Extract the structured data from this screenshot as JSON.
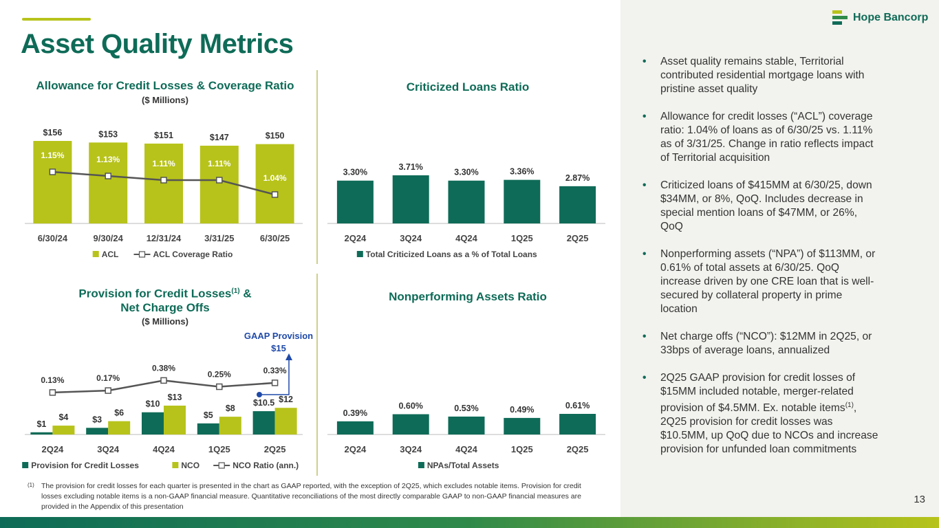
{
  "page": {
    "title": "Asset Quality Metrics",
    "page_number": "13",
    "logo_text": "Hope Bancorp"
  },
  "colors": {
    "green": "#0e6b57",
    "lime": "#b7c31a",
    "dark_gray": "#555555"
  },
  "bullets": [
    "Asset quality remains stable, Territorial contributed residential mortgage loans with pristine asset quality",
    "Allowance for credit losses (“ACL”) coverage ratio: 1.04% of loans as of 6/30/25 vs. 1.11% as of 3/31/25. Change in ratio reflects impact of Territorial acquisition",
    "Criticized loans of $415MM at 6/30/25, down $34MM, or 8%, QoQ. Includes decrease in special mention loans of $47MM, or 26%, QoQ",
    "Nonperforming assets (“NPA”) of $113MM, or 0.61% of total assets at 6/30/25. QoQ increase driven by one CRE loan that is well-secured by collateral property in prime location",
    "Net charge offs (“NCO”): $12MM in 2Q25, or 33bps of average loans, annualized",
    "2Q25 GAAP provision for credit losses of $15MM included notable, merger-related provision of $4.5MM. Ex. notable items(1), 2Q25 provision for credit losses was $10.5MM, up QoQ due to NCOs and increase provision for unfunded loan commitments"
  ],
  "footnote": {
    "marker": "(1)",
    "text": "The provision for credit losses for each quarter is presented in the chart as GAAP reported, with the exception of 2Q25, which excludes notable items. Provision for credit losses excluding notable items is a non-GAAP financial measure. Quantitative reconciliations of the most directly comparable GAAP to non-GAAP financial measures are provided in the Appendix of this presentation"
  },
  "gaap_annotation": {
    "line1": "GAAP Provision",
    "line2": "$15"
  },
  "chart_data": [
    {
      "id": "acl",
      "type": "bar",
      "title": "Allowance for Credit Losses & Coverage Ratio",
      "subtitle": "($ Millions)",
      "categories": [
        "6/30/24",
        "9/30/24",
        "12/31/24",
        "3/31/25",
        "6/30/25"
      ],
      "series": [
        {
          "name": "ACL",
          "kind": "bar",
          "color": "#b7c31a",
          "values": [
            156,
            153,
            151,
            147,
            150
          ],
          "labels": [
            "$156",
            "$153",
            "$151",
            "$147",
            "$150"
          ]
        },
        {
          "name": "ACL Coverage Ratio",
          "kind": "line",
          "color": "#555555",
          "values": [
            1.15,
            1.13,
            1.11,
            1.11,
            1.04
          ],
          "labels": [
            "1.15%",
            "1.13%",
            "1.11%",
            "1.11%",
            "1.04%"
          ]
        }
      ],
      "legend_position": "bottom"
    },
    {
      "id": "criticized",
      "type": "bar",
      "title": "Criticized Loans Ratio",
      "categories": [
        "2Q24",
        "3Q24",
        "4Q24",
        "1Q25",
        "2Q25"
      ],
      "series": [
        {
          "name": "Total Criticized Loans as a % of Total Loans",
          "kind": "bar",
          "color": "#0e6b57",
          "values": [
            3.3,
            3.71,
            3.3,
            3.36,
            2.87
          ],
          "labels": [
            "3.30%",
            "3.71%",
            "3.30%",
            "3.36%",
            "2.87%"
          ]
        }
      ],
      "legend_position": "bottom"
    },
    {
      "id": "provision",
      "type": "bar",
      "title": "Provision for Credit Losses",
      "title_superscript": "(1)",
      "title_suffix": " &",
      "title_line2": "Net Charge Offs",
      "subtitle": "($ Millions)",
      "categories": [
        "2Q24",
        "3Q24",
        "4Q24",
        "1Q25",
        "2Q25"
      ],
      "series": [
        {
          "name": "Provision for Credit Losses",
          "kind": "bar",
          "color": "#0e6b57",
          "values": [
            1,
            3,
            10,
            5,
            10.5
          ],
          "labels": [
            "$1",
            "$3",
            "$10",
            "$5",
            "$10.5"
          ]
        },
        {
          "name": "NCO",
          "kind": "bar",
          "color": "#b7c31a",
          "values": [
            4,
            6,
            13,
            8,
            12
          ],
          "labels": [
            "$4",
            "$6",
            "$13",
            "$8",
            "$12"
          ]
        },
        {
          "name": "NCO Ratio (ann.)",
          "kind": "line",
          "color": "#555555",
          "values": [
            0.13,
            0.17,
            0.38,
            0.25,
            0.33
          ],
          "labels": [
            "0.13%",
            "0.17%",
            "0.38%",
            "0.25%",
            "0.33%"
          ]
        }
      ],
      "legend_position": "bottom"
    },
    {
      "id": "npa",
      "type": "bar",
      "title": "Nonperforming Assets Ratio",
      "categories": [
        "2Q24",
        "3Q24",
        "4Q24",
        "1Q25",
        "2Q25"
      ],
      "series": [
        {
          "name": "NPAs/Total Assets",
          "kind": "bar",
          "color": "#0e6b57",
          "values": [
            0.39,
            0.6,
            0.53,
            0.49,
            0.61
          ],
          "labels": [
            "0.39%",
            "0.60%",
            "0.53%",
            "0.49%",
            "0.61%"
          ]
        }
      ],
      "legend_position": "bottom"
    }
  ]
}
